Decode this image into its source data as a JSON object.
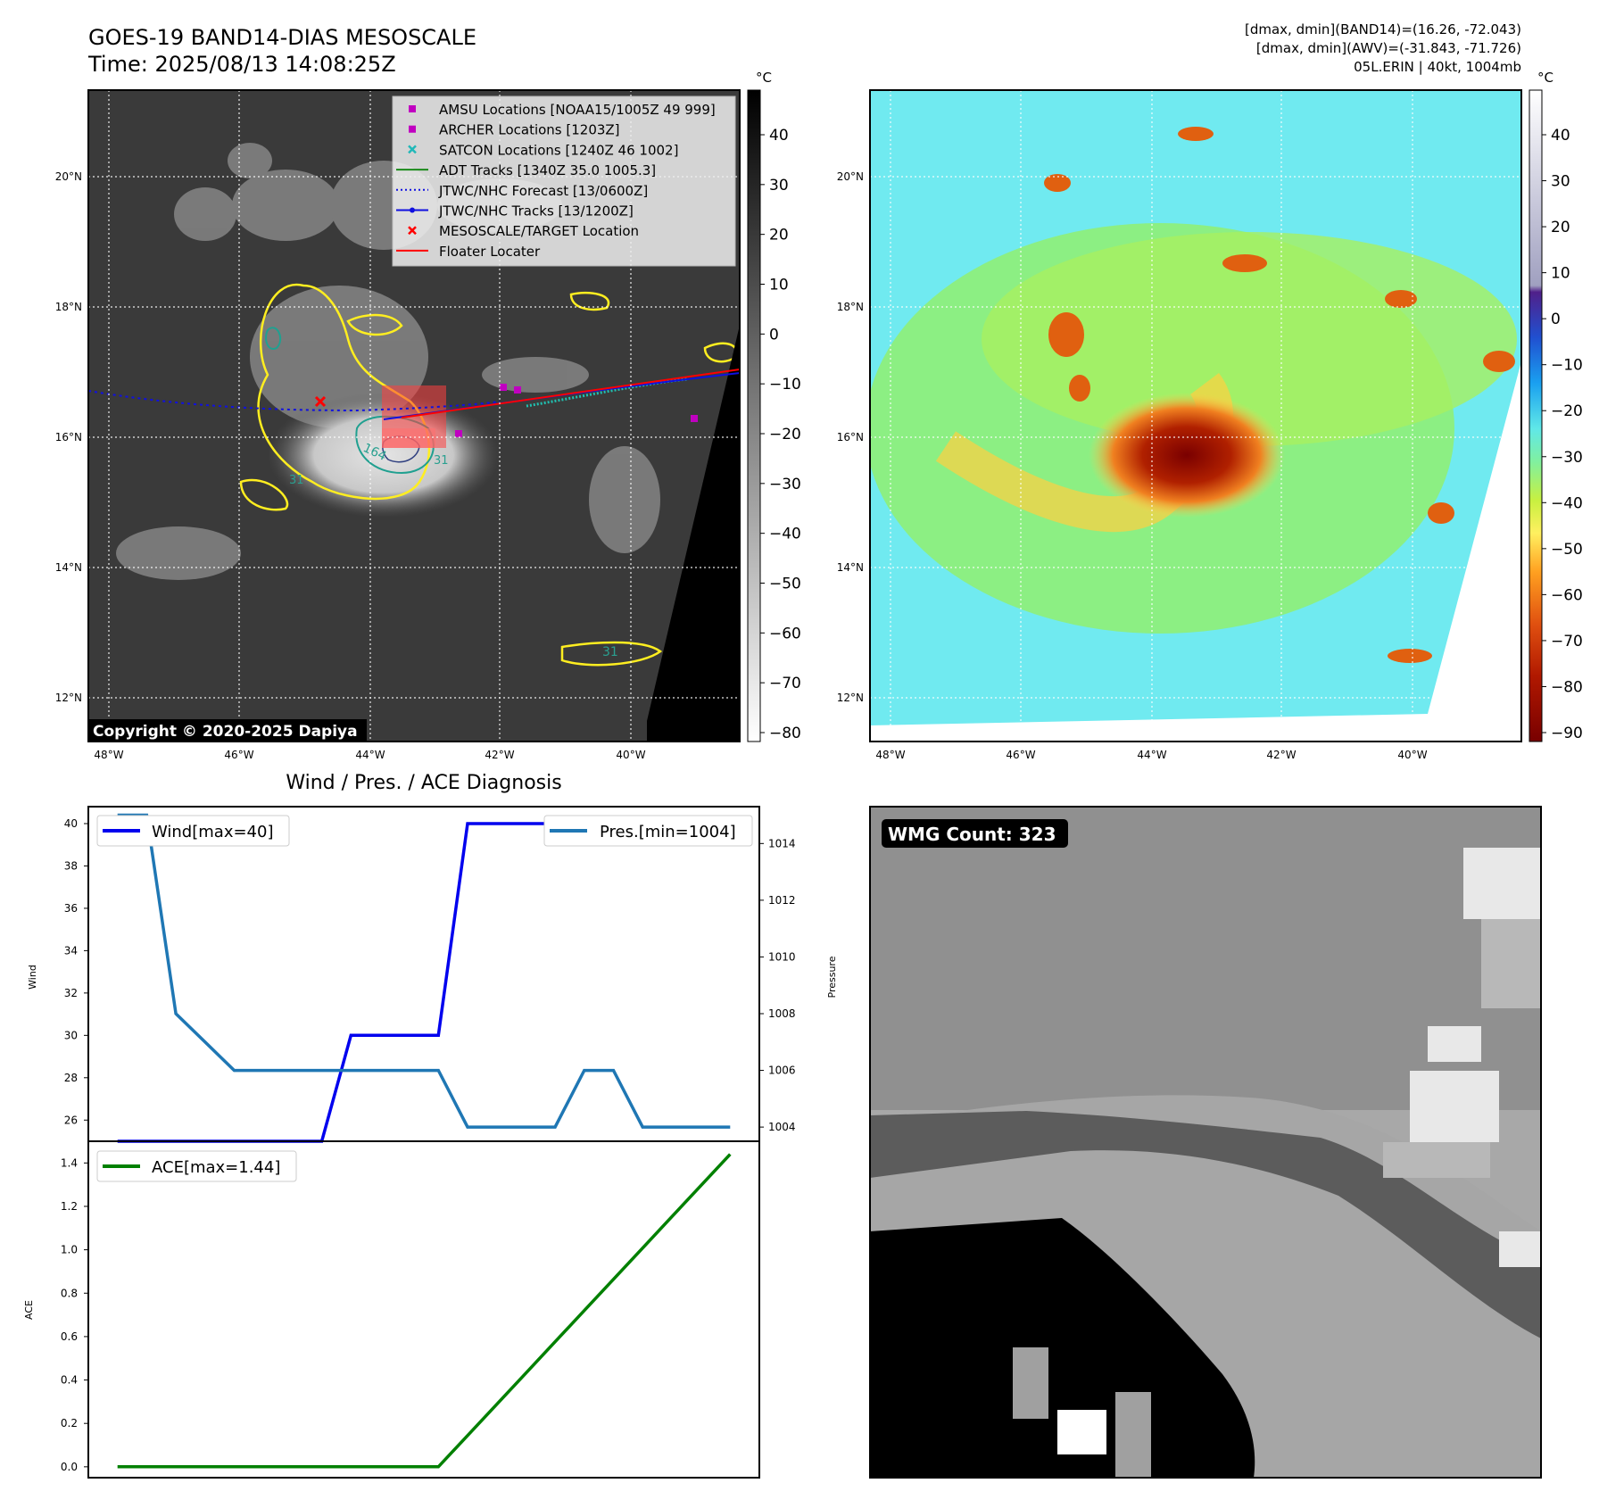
{
  "header": {
    "title_line1": "GOES-19 BAND14-DIAS MESOSCALE",
    "title_line2": "Time: 2025/08/13 14:08:25Z",
    "info_line1": "[dmax, dmin](BAND14)=(16.26, -72.043)",
    "info_line2": "[dmax, dmin](AWV)=(-31.843, -71.726)",
    "info_line3": "05L.ERIN | 40kt, 1004mb"
  },
  "copyright": "Copyright © 2020-2025 Dapiya",
  "map_axes": {
    "lat_ticks": [
      "20°N",
      "18°N",
      "16°N",
      "14°N",
      "12°N"
    ],
    "lon_ticks": [
      "48°W",
      "46°W",
      "44°W",
      "42°W",
      "40°W"
    ]
  },
  "colorbar_left": {
    "unit": "°C",
    "ticks": [
      "40",
      "30",
      "20",
      "10",
      "0",
      "−10",
      "−20",
      "−30",
      "−40",
      "−50",
      "−60",
      "−70",
      "−80"
    ]
  },
  "colorbar_right": {
    "unit": "°C",
    "ticks": [
      "40",
      "30",
      "20",
      "10",
      "0",
      "−10",
      "−20",
      "−30",
      "−40",
      "−50",
      "−60",
      "−70",
      "−80",
      "−90"
    ]
  },
  "map_legend": [
    {
      "label": "AMSU Locations [NOAA15/1005Z 49 999]",
      "symbol": "square",
      "color": "#c000c0"
    },
    {
      "label": "ARCHER Locations [1203Z]",
      "symbol": "square",
      "color": "#c000c0"
    },
    {
      "label": "SATCON Locations [1240Z 46 1002]",
      "symbol": "x",
      "color": "#20b8b8"
    },
    {
      "label": "ADT Tracks [1340Z 35.0 1005.3]",
      "symbol": "line",
      "color": "#1a8a1a"
    },
    {
      "label": "JTWC/NHC Forecast [13/0600Z]",
      "symbol": "dotted",
      "color": "#1010e0"
    },
    {
      "label": "JTWC/NHC Tracks [13/1200Z]",
      "symbol": "line-dot",
      "color": "#1010e0"
    },
    {
      "label": "MESOSCALE/TARGET Location",
      "symbol": "x",
      "color": "#ff0000"
    },
    {
      "label": "Floater Locater",
      "symbol": "line",
      "color": "#ff0000"
    }
  ],
  "map_contour_labels": {
    "a": "164",
    "b": "31",
    "c": "31",
    "d": "31"
  },
  "diagnosis": {
    "title": "Wind / Pres. / ACE Diagnosis",
    "wind_ylabel": "Wind",
    "pressure_ylabel": "Pressure",
    "ace_ylabel": "ACE",
    "wind_legend": "Wind[max=40]",
    "pres_legend": "Pres.[min=1004]",
    "ace_legend": "ACE[max=1.44]"
  },
  "wmg": {
    "label": "WMG Count: 323"
  },
  "colors": {
    "wind": "#0000ee",
    "pressure": "#1f77b4",
    "ace": "#008000",
    "track_red": "#ff0000",
    "forecast_blue": "#1010e0"
  },
  "chart_data": [
    {
      "type": "line",
      "title": "Wind / Pres. / ACE Diagnosis",
      "x": [
        0,
        1,
        2,
        3,
        4,
        5,
        6,
        7,
        8,
        9,
        10,
        11,
        12,
        13,
        14,
        15,
        16,
        17,
        18,
        19,
        20,
        21
      ],
      "series": [
        {
          "name": "Wind[max=40]",
          "axis": "left",
          "values": [
            25,
            25,
            25,
            25,
            25,
            25,
            25,
            25,
            30,
            30,
            30,
            30,
            40,
            40,
            40,
            40,
            40,
            40,
            40,
            40,
            40,
            40
          ]
        },
        {
          "name": "Pres.[min=1004]",
          "axis": "right",
          "values": [
            1015,
            1015,
            1008,
            1007,
            1006,
            1006,
            1006,
            1006,
            1006,
            1006,
            1006,
            1006,
            1004,
            1004,
            1004,
            1004,
            1006,
            1006,
            1004,
            1004,
            1004,
            1004
          ]
        }
      ],
      "ylabel": "Wind",
      "ylim": [
        25,
        40.8
      ],
      "y_ticks": [
        26,
        28,
        30,
        32,
        34,
        36,
        38,
        40
      ],
      "y2label": "Pressure",
      "y2lim": [
        1003.5,
        1015.3
      ],
      "y2_ticks": [
        1004,
        1006,
        1008,
        1010,
        1012,
        1014
      ]
    },
    {
      "type": "line",
      "x": [
        0,
        1,
        2,
        3,
        4,
        5,
        6,
        7,
        8,
        9,
        10,
        11,
        12,
        13,
        14,
        15,
        16,
        17,
        18,
        19,
        20,
        21
      ],
      "series": [
        {
          "name": "ACE[max=1.44]",
          "values": [
            0,
            0,
            0,
            0,
            0,
            0,
            0,
            0,
            0,
            0,
            0,
            0,
            0.144,
            0.288,
            0.432,
            0.576,
            0.72,
            0.864,
            1.008,
            1.152,
            1.296,
            1.44
          ]
        }
      ],
      "ylabel": "ACE",
      "ylim": [
        -0.05,
        1.5
      ],
      "y_ticks": [
        "0.0",
        "0.2",
        "0.4",
        "0.6",
        "0.8",
        "1.0",
        "1.2",
        "1.4"
      ]
    }
  ]
}
